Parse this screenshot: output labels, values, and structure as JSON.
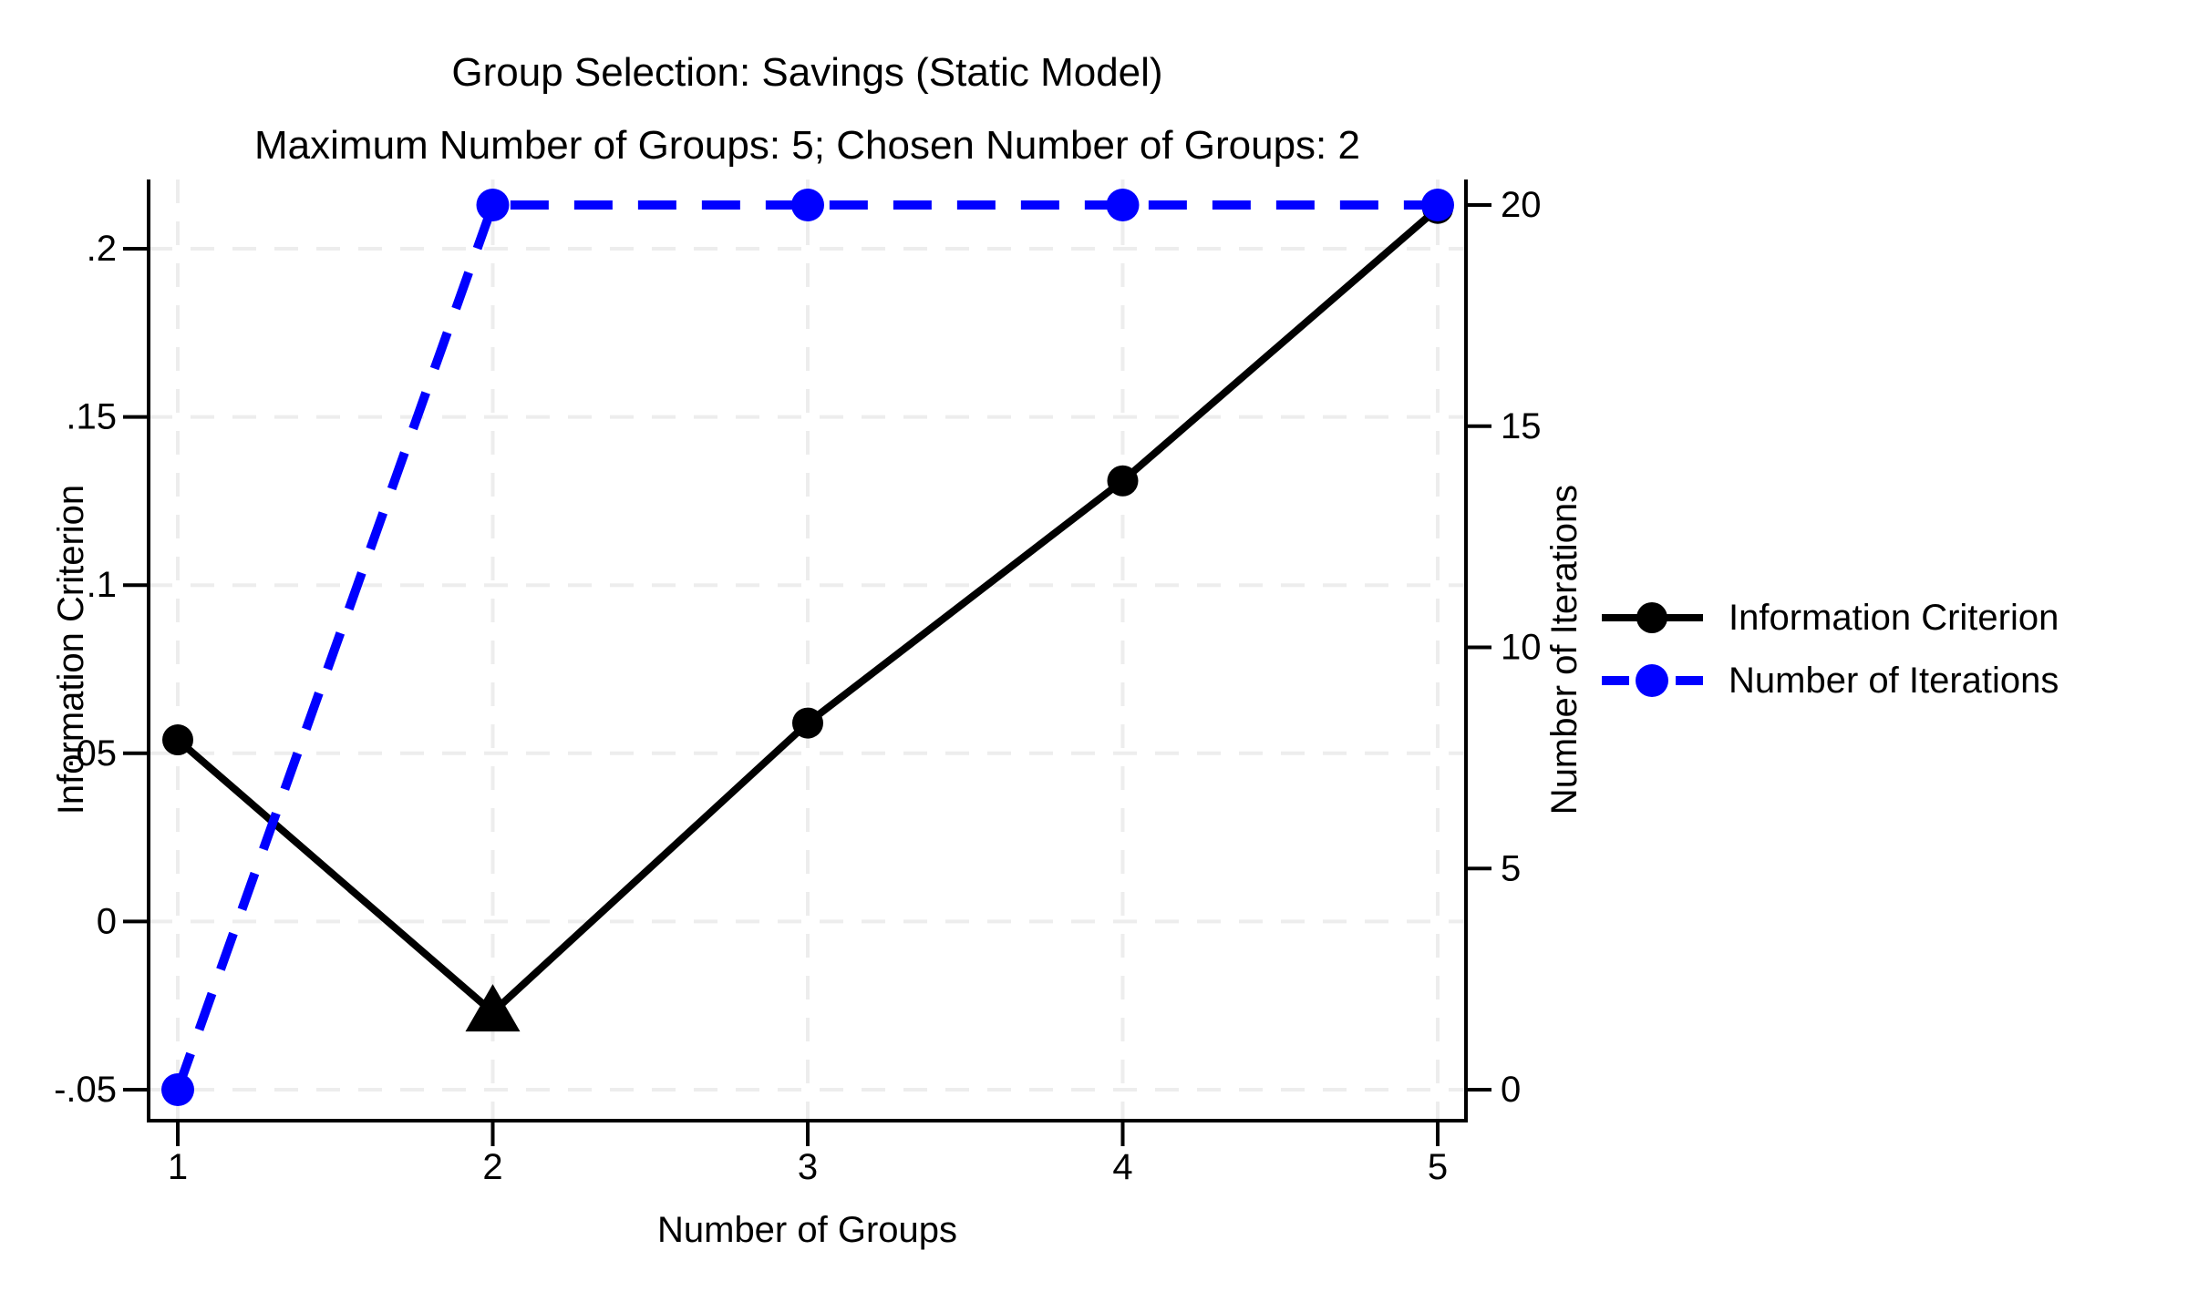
{
  "figure": {
    "title": "Group Selection: Savings (Static Model)",
    "subtitle": "Maximum Number of Groups: 5; Chosen Number of Groups: 2"
  },
  "chart_data": {
    "type": "line",
    "title": "Group Selection: Savings (Static Model)",
    "subtitle": "Maximum Number of Groups: 5; Chosen Number of Groups: 2",
    "xlabel": "Number of Groups",
    "ylabel_left": "Information Criterion",
    "ylabel_right": "Number of Iterations",
    "x": [
      1,
      2,
      3,
      4,
      5
    ],
    "x_tick_labels": [
      "1",
      "2",
      "3",
      "4",
      "5"
    ],
    "left_axis": {
      "tick_values": [
        0.2,
        0.15,
        0.1,
        0.05,
        0,
        -0.05
      ],
      "tick_labels": [
        ".2",
        ".15",
        ".1",
        ".05",
        "0",
        "-.05"
      ],
      "range_approx": [
        -0.059,
        0.221
      ]
    },
    "right_axis": {
      "tick_values": [
        20,
        15,
        10,
        5,
        0
      ],
      "tick_labels": [
        "20",
        "15",
        "10",
        "5",
        "0"
      ],
      "range_approx": [
        -0.7,
        20.6
      ]
    },
    "series": [
      {
        "name": "Information Criterion",
        "axis": "left",
        "color": "#000000",
        "line_style": "solid",
        "marker": "circle",
        "values": [
          0.054,
          -0.027,
          0.059,
          0.131,
          0.212
        ],
        "special_marker": {
          "x": 2,
          "index": 1,
          "shape": "triangle-up",
          "meaning": "chosen number of groups"
        }
      },
      {
        "name": "Number of Iterations",
        "axis": "right",
        "color": "#0000FF",
        "line_style": "dashed",
        "marker": "circle",
        "values": [
          0,
          20,
          20,
          20,
          20
        ]
      }
    ],
    "legend": {
      "position": "right-middle",
      "entries": [
        "Information Criterion",
        "Number of Iterations"
      ]
    },
    "grid": true,
    "colors": {
      "grid": "#EDEDED",
      "background": "#FFFFFF",
      "axis": "#000000"
    }
  }
}
